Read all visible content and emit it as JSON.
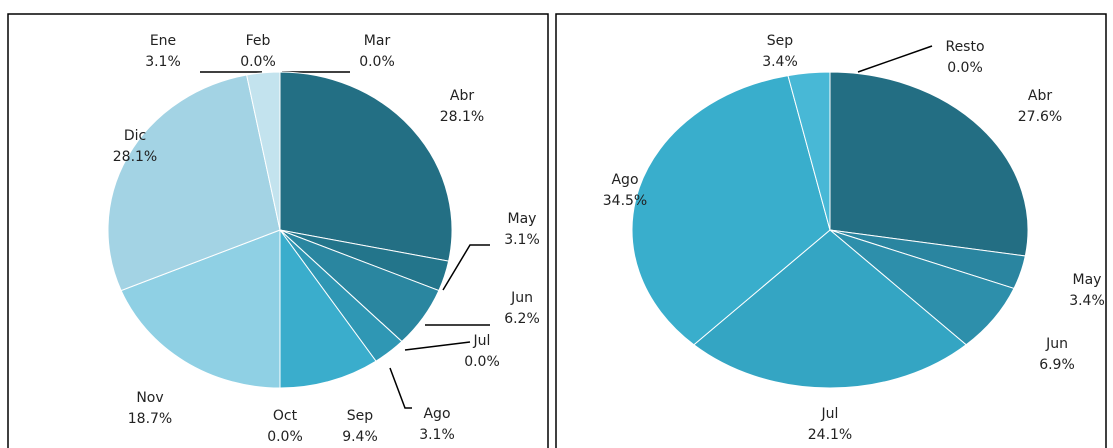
{
  "chart_data": [
    {
      "type": "pie",
      "categories": [
        "Abr",
        "May",
        "Jun",
        "Jul",
        "Ago",
        "Sep",
        "Oct",
        "Nov",
        "Dic",
        "Ene",
        "Feb",
        "Mar"
      ],
      "values": [
        28.1,
        3.1,
        6.2,
        0.0,
        3.1,
        9.4,
        0.0,
        18.7,
        28.1,
        3.1,
        0.0,
        0.0
      ],
      "value_labels": [
        "28.1%",
        "3.1%",
        "6.2%",
        "0.0%",
        "3.1%",
        "9.4%",
        "0.0%",
        "18.7%",
        "28.1%",
        "3.1%",
        "0.0%",
        "0.0%"
      ],
      "colors": [
        "#236f84",
        "#23758b",
        "#2a86a0",
        "#2a86a0",
        "#2f97b4",
        "#3aadcc",
        "#3aadcc",
        "#8fd0e4",
        "#a3d3e4",
        "#c3e3ee",
        "#c3e3ee",
        "#c3e3ee"
      ]
    },
    {
      "type": "pie",
      "categories": [
        "Abr",
        "May",
        "Jun",
        "Jul",
        "Ago",
        "Sep",
        "Resto"
      ],
      "values": [
        27.6,
        3.4,
        6.9,
        24.1,
        34.5,
        3.4,
        0.0
      ],
      "value_labels": [
        "27.6%",
        "3.4%",
        "6.9%",
        "24.1%",
        "34.5%",
        "3.4%",
        "0.0%"
      ],
      "colors": [
        "#236e83",
        "#2a85a0",
        "#2d8fab",
        "#34a5c3",
        "#39aecc",
        "#48b8d6",
        "#48b8d6"
      ]
    }
  ]
}
